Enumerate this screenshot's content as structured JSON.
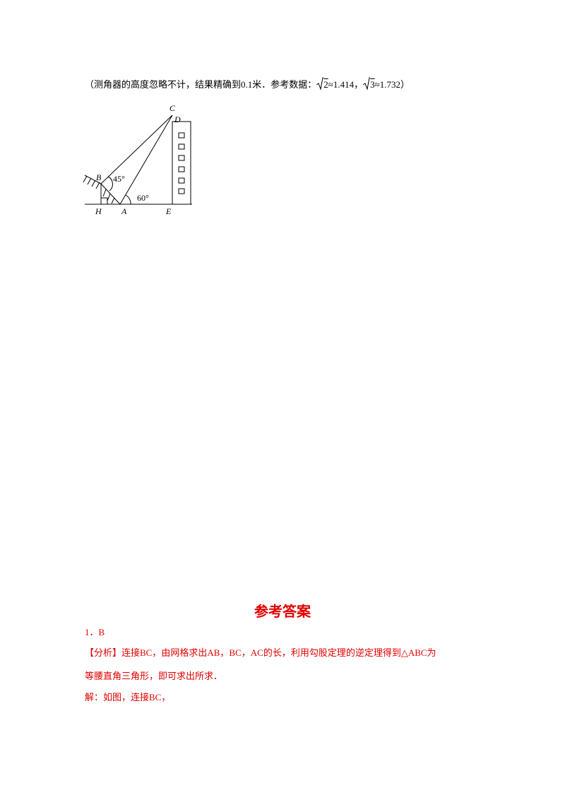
{
  "problem": {
    "note_part1": "（测角器的高度忽略不计，结果精确到0.1米．参考数据：",
    "sqrt2_radicand": "2",
    "note_part2": "≈1.414，",
    "sqrt3_radicand": "3",
    "note_part3": "≈1.732）"
  },
  "figure": {
    "labels": {
      "C": "C",
      "D": "D",
      "B": "B",
      "angle45": "45°",
      "angle60": "60°",
      "H": "H",
      "A": "A",
      "E": "E"
    }
  },
  "answer": {
    "heading": "参考答案",
    "item": "1．B",
    "analysis_tag": "【分析】",
    "analysis_line1": "连接BC，由网格求出AB，BC，AC的长，利用勾股定理的逆定理得到△ABC为",
    "analysis_line2": "等腰直角三角形，即可求出所求．",
    "solution": "解：如图，连接BC，"
  }
}
